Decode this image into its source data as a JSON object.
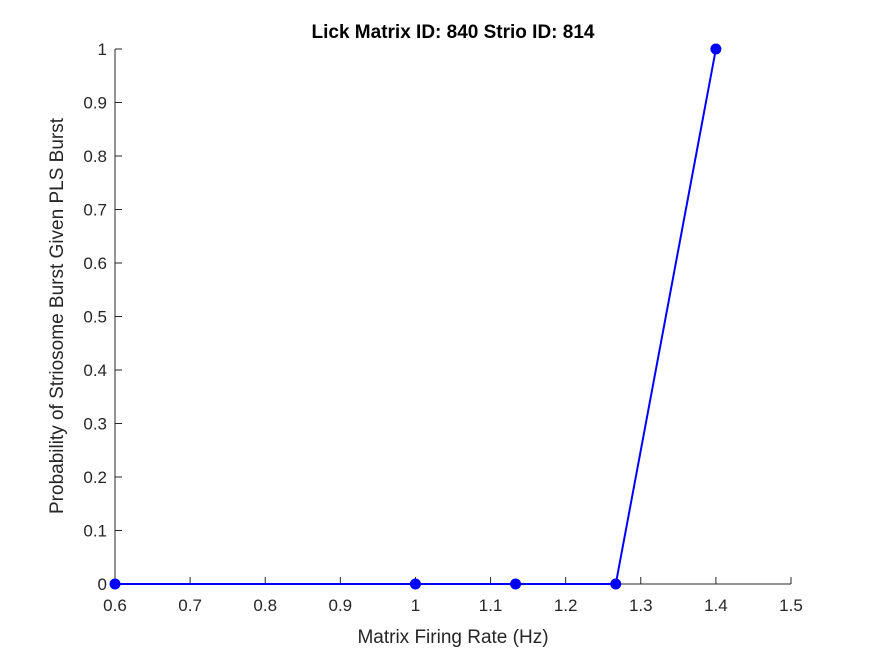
{
  "chart_data": {
    "type": "line",
    "title": "Lick Matrix ID: 840 Strio ID: 814",
    "xlabel": "Matrix Firing Rate (Hz)",
    "ylabel": "Probability of Striosome Burst Given PLS Burst",
    "xlim": [
      0.6,
      1.5
    ],
    "ylim": [
      0,
      1
    ],
    "x_ticks": [
      0.6,
      0.7,
      0.8,
      0.9,
      1,
      1.1,
      1.2,
      1.3,
      1.4,
      1.5
    ],
    "x_tick_labels": [
      "0.6",
      "0.7",
      "0.8",
      "0.9",
      "1",
      "1.1",
      "1.2",
      "1.3",
      "1.4",
      "1.5"
    ],
    "y_ticks": [
      0,
      0.1,
      0.2,
      0.3,
      0.4,
      0.5,
      0.6,
      0.7,
      0.8,
      0.9,
      1
    ],
    "y_tick_labels": [
      "0",
      "0.1",
      "0.2",
      "0.3",
      "0.4",
      "0.5",
      "0.6",
      "0.7",
      "0.8",
      "0.9",
      "1"
    ],
    "grid": false,
    "line_color": "#0000ff",
    "series": [
      {
        "x": [
          0.6,
          1.0,
          1.1333,
          1.2667,
          1.4
        ],
        "y": [
          0,
          0,
          0,
          0,
          1
        ]
      }
    ]
  }
}
